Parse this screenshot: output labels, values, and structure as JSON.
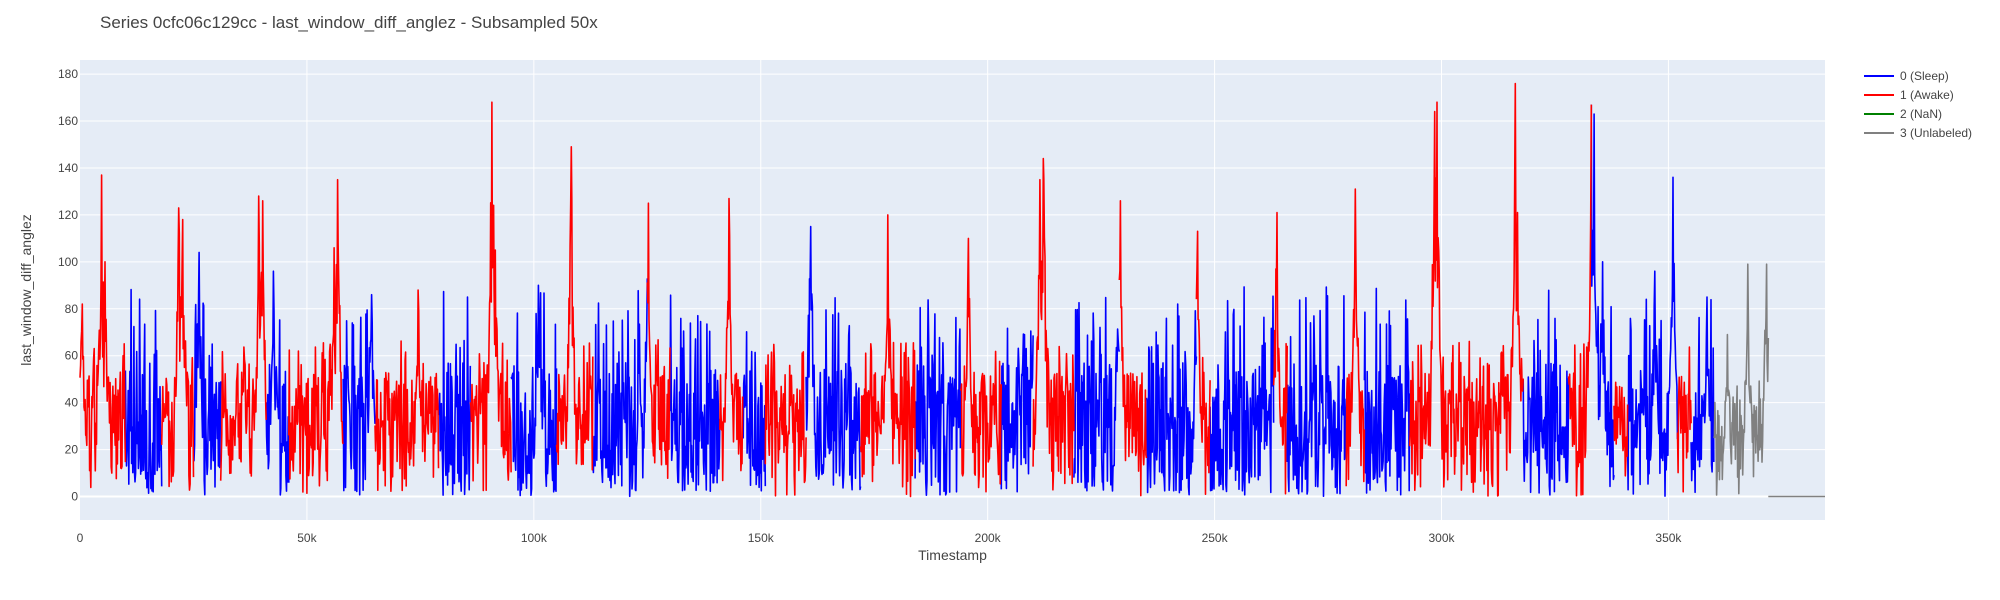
{
  "chart_data": {
    "type": "line",
    "title": "Series 0cfc06c129cc - last_window_diff_anglez - Subsampled 50x",
    "xlabel": "Timestamp",
    "ylabel": "last_window_diff_anglez",
    "xlim": [
      0,
      384500
    ],
    "ylim": [
      -10,
      186
    ],
    "x_ticks": [
      0,
      50000,
      100000,
      150000,
      200000,
      250000,
      300000,
      350000
    ],
    "x_tick_labels": [
      "0",
      "50k",
      "100k",
      "150k",
      "200k",
      "250k",
      "300k",
      "350k"
    ],
    "y_ticks": [
      0,
      20,
      40,
      60,
      80,
      100,
      120,
      140,
      160,
      180
    ],
    "y_tick_labels": [
      "0",
      "20",
      "40",
      "60",
      "80",
      "100",
      "120",
      "140",
      "160",
      "180"
    ],
    "grid": true,
    "legend_position": "top-right",
    "series": [
      {
        "name": "0 (Sleep)",
        "color": "#0000ff",
        "segments": [
          [
            10000,
            18000
          ],
          [
            25000,
            31000
          ],
          [
            41000,
            46000
          ],
          [
            58000,
            65000
          ],
          [
            79000,
            86000
          ],
          [
            95000,
            105000
          ],
          [
            113000,
            125000
          ],
          [
            130000,
            141000
          ],
          [
            146000,
            151000
          ],
          [
            160000,
            172000
          ],
          [
            184000,
            194000
          ],
          [
            203000,
            210000
          ],
          [
            219000,
            229000
          ],
          [
            235000,
            246000
          ],
          [
            249000,
            263000
          ],
          [
            266000,
            279000
          ],
          [
            283000,
            293000
          ],
          [
            318000,
            328000
          ],
          [
            333000,
            338000
          ],
          [
            341000,
            352000
          ],
          [
            355000,
            360000
          ]
        ]
      },
      {
        "name": "1 (Awake)",
        "color": "#ff0000",
        "segments": [
          [
            0,
            10000
          ],
          [
            18000,
            25000
          ],
          [
            31000,
            41000
          ],
          [
            46000,
            58000
          ],
          [
            65000,
            79000
          ],
          [
            86000,
            95000
          ],
          [
            105000,
            113000
          ],
          [
            125000,
            130000
          ],
          [
            141000,
            146000
          ],
          [
            151000,
            160000
          ],
          [
            172000,
            184000
          ],
          [
            194000,
            203000
          ],
          [
            210000,
            219000
          ],
          [
            229000,
            235000
          ],
          [
            246000,
            249000
          ],
          [
            263000,
            266000
          ],
          [
            279000,
            283000
          ],
          [
            293000,
            318000
          ],
          [
            328000,
            333000
          ],
          [
            338000,
            341000
          ],
          [
            352000,
            355000
          ]
        ]
      },
      {
        "name": "2 (NaN)",
        "color": "#008000",
        "segments": []
      },
      {
        "name": "3 (Unlabeled)",
        "color": "#808080",
        "segments": [
          [
            360000,
            372000
          ],
          [
            372000,
            384500
          ]
        ]
      }
    ],
    "peaks": [
      {
        "x": 500,
        "y": 82
      },
      {
        "x": 4700,
        "y": 137
      },
      {
        "x": 5500,
        "y": 100
      },
      {
        "x": 21800,
        "y": 123
      },
      {
        "x": 22600,
        "y": 118
      },
      {
        "x": 26200,
        "y": 104
      },
      {
        "x": 39400,
        "y": 128
      },
      {
        "x": 40200,
        "y": 126
      },
      {
        "x": 42600,
        "y": 96
      },
      {
        "x": 56800,
        "y": 135
      },
      {
        "x": 56000,
        "y": 106
      },
      {
        "x": 64200,
        "y": 86
      },
      {
        "x": 74500,
        "y": 88
      },
      {
        "x": 90800,
        "y": 168
      },
      {
        "x": 91500,
        "y": 105
      },
      {
        "x": 108200,
        "y": 149
      },
      {
        "x": 101000,
        "y": 90
      },
      {
        "x": 125200,
        "y": 125
      },
      {
        "x": 143000,
        "y": 127
      },
      {
        "x": 161000,
        "y": 115
      },
      {
        "x": 178000,
        "y": 120
      },
      {
        "x": 195800,
        "y": 110
      },
      {
        "x": 212300,
        "y": 144
      },
      {
        "x": 211500,
        "y": 135
      },
      {
        "x": 229200,
        "y": 126
      },
      {
        "x": 246200,
        "y": 113
      },
      {
        "x": 263700,
        "y": 121
      },
      {
        "x": 281000,
        "y": 131
      },
      {
        "x": 298500,
        "y": 164
      },
      {
        "x": 299000,
        "y": 168
      },
      {
        "x": 316200,
        "y": 176
      },
      {
        "x": 316800,
        "y": 121
      },
      {
        "x": 333000,
        "y": 167
      },
      {
        "x": 333600,
        "y": 163
      },
      {
        "x": 351000,
        "y": 136
      },
      {
        "x": 335500,
        "y": 100
      },
      {
        "x": 347000,
        "y": 96
      },
      {
        "x": 358500,
        "y": 85
      },
      {
        "x": 367500,
        "y": 99
      },
      {
        "x": 371600,
        "y": 99
      },
      {
        "x": 363000,
        "y": 69
      }
    ],
    "unlabeled_tail": {
      "x_start": 372000,
      "x_end": 384500,
      "y": 0
    }
  }
}
